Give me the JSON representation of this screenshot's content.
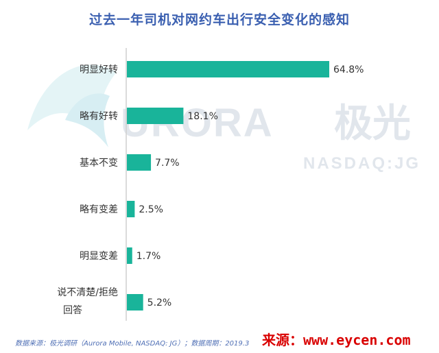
{
  "chart_data": {
    "type": "bar",
    "orientation": "horizontal",
    "title": "过去一年司机对网约车出行安全变化的感知",
    "categories": [
      "明显好转",
      "略有好转",
      "基本不变",
      "略有变差",
      "明显变差",
      "说不清楚/拒绝回答"
    ],
    "category_lines": [
      [
        "明显好转"
      ],
      [
        "略有好转"
      ],
      [
        "基本不变"
      ],
      [
        "略有变差"
      ],
      [
        "明显变差"
      ],
      [
        "说不清楚/拒绝",
        "回答"
      ]
    ],
    "values": [
      64.8,
      18.1,
      7.7,
      2.5,
      1.7,
      5.2
    ],
    "value_labels": [
      "64.8%",
      "18.1%",
      "7.7%",
      "2.5%",
      "1.7%",
      "5.2%"
    ],
    "unit": "%",
    "xlim": [
      0,
      64.8
    ],
    "grid": false,
    "bar_color": "#19b49a",
    "axis_color": "#cfcfcf"
  },
  "watermark": {
    "logo_text": "URORA",
    "logo_cn": "极光",
    "ticker": "NASDAQ:JG",
    "color": "#dfe4ea"
  },
  "footer": {
    "source": "数据来源：极光调研（Aurora Mobile, NASDAQ: JG）；数据周期：2019.3",
    "site_watermark": "来源：www.eycen.com"
  }
}
